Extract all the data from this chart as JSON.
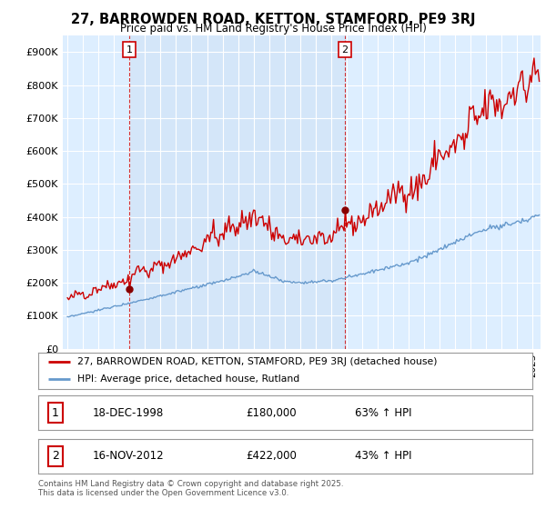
{
  "title_line1": "27, BARROWDEN ROAD, KETTON, STAMFORD, PE9 3RJ",
  "title_line2": "Price paid vs. HM Land Registry's House Price Index (HPI)",
  "ylabel_ticks": [
    "£0",
    "£100K",
    "£200K",
    "£300K",
    "£400K",
    "£500K",
    "£600K",
    "£700K",
    "£800K",
    "£900K"
  ],
  "ytick_values": [
    0,
    100000,
    200000,
    300000,
    400000,
    500000,
    600000,
    700000,
    800000,
    900000
  ],
  "xlim": [
    1994.7,
    2025.5
  ],
  "ylim": [
    0,
    950000
  ],
  "legend_line1": "27, BARROWDEN ROAD, KETTON, STAMFORD, PE9 3RJ (detached house)",
  "legend_line2": "HPI: Average price, detached house, Rutland",
  "sale1_label": "1",
  "sale1_date": "18-DEC-1998",
  "sale1_price": "£180,000",
  "sale1_note": "63% ↑ HPI",
  "sale2_label": "2",
  "sale2_date": "16-NOV-2012",
  "sale2_price": "£422,000",
  "sale2_note": "43% ↑ HPI",
  "footer": "Contains HM Land Registry data © Crown copyright and database right 2025.\nThis data is licensed under the Open Government Licence v3.0.",
  "red_color": "#cc0000",
  "blue_color": "#6699cc",
  "bg_color": "#ddeeff",
  "bg_highlight": "#ccdff5",
  "grid_color": "#ffffff",
  "sale1_x": 1999.0,
  "sale2_x": 2012.88,
  "sale1_y": 180000,
  "sale2_y": 422000
}
